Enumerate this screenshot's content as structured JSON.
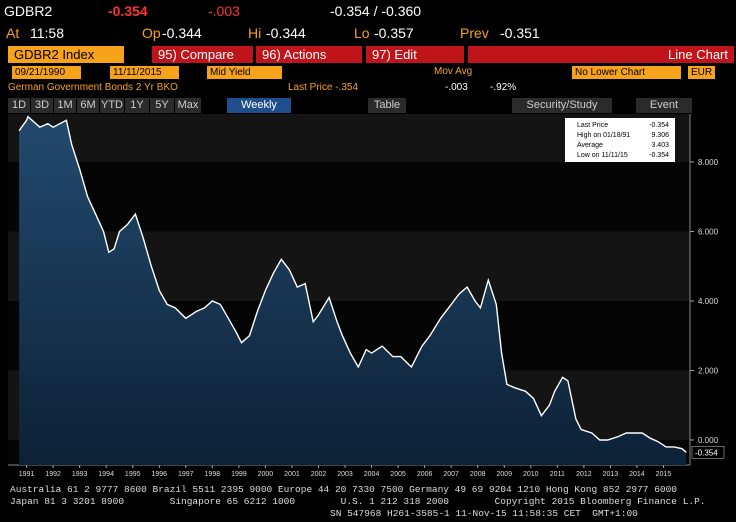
{
  "header": {
    "ticker": "GDBR2",
    "last": "-0.354",
    "change": "-.003",
    "bid_ask": "-0.354 / -0.360"
  },
  "quote": {
    "at_label": "At",
    "at": "11:58",
    "op_label": "Op",
    "op": "-0.344",
    "hi_label": "Hi",
    "hi": "-0.344",
    "lo_label": "Lo",
    "lo": "-0.357",
    "prev_label": "Prev",
    "prev": "-0.351"
  },
  "menu": {
    "security": "GDBR2 Index",
    "compare": "95) Compare",
    "actions": "96) Actions",
    "edit": "97) Edit",
    "chart_type": "Line Chart"
  },
  "settings": {
    "start": "09/21/1990",
    "end": "11/11/2015",
    "field": "Mid Yield",
    "study": "Mov Avg",
    "lower": "No Lower Chart",
    "currency": "EUR"
  },
  "info": {
    "name": "German Government Bonds 2 Yr BKO",
    "last_price": "Last Price -.354",
    "change": "-.003",
    "pct": "-.92%"
  },
  "toolbar": {
    "ranges": [
      "1D",
      "3D",
      "1M",
      "6M",
      "YTD",
      "1Y",
      "5Y",
      "Max"
    ],
    "period": "Weekly",
    "table": "Table",
    "study": "Security/Study",
    "event": "Event"
  },
  "chart_data": {
    "type": "line",
    "x": [
      1990.72,
      1991.0,
      1991.05,
      1991.5,
      1991.8,
      1992.0,
      1992.5,
      1992.7,
      1993.0,
      1993.3,
      1993.6,
      1993.9,
      1994.1,
      1994.3,
      1994.5,
      1994.8,
      1995.1,
      1995.4,
      1995.7,
      1996.0,
      1996.3,
      1996.6,
      1997.0,
      1997.4,
      1997.7,
      1998.0,
      1998.3,
      1998.6,
      1998.9,
      1999.1,
      1999.4,
      1999.7,
      2000.0,
      2000.3,
      2000.6,
      2000.9,
      2001.2,
      2001.5,
      2001.8,
      2002.0,
      2002.4,
      2002.7,
      2002.9,
      2003.2,
      2003.5,
      2003.8,
      2004.0,
      2004.4,
      2004.8,
      2005.1,
      2005.5,
      2005.9,
      2006.2,
      2006.6,
      2007.0,
      2007.3,
      2007.6,
      2007.9,
      2008.1,
      2008.4,
      2008.7,
      2008.9,
      2009.1,
      2009.4,
      2009.8,
      2010.1,
      2010.4,
      2010.7,
      2010.9,
      2011.2,
      2011.4,
      2011.7,
      2011.9,
      2012.3,
      2012.6,
      2012.9,
      2013.3,
      2013.6,
      2013.9,
      2014.2,
      2014.5,
      2014.8,
      2015.1,
      2015.4,
      2015.7,
      2015.86
    ],
    "series": [
      {
        "name": "Last Price",
        "color": "#ffffff",
        "values": [
          8.9,
          9.2,
          9.306,
          9.0,
          9.1,
          9.0,
          9.2,
          8.5,
          7.8,
          7.0,
          6.5,
          6.0,
          5.4,
          5.5,
          6.0,
          6.2,
          6.5,
          5.8,
          5.0,
          4.3,
          3.9,
          3.8,
          3.5,
          3.7,
          3.8,
          4.0,
          3.9,
          3.5,
          3.1,
          2.8,
          3.0,
          3.7,
          4.3,
          4.8,
          5.2,
          4.9,
          4.4,
          4.5,
          3.4,
          3.6,
          4.1,
          3.4,
          3.0,
          2.5,
          2.1,
          2.6,
          2.5,
          2.7,
          2.4,
          2.4,
          2.1,
          2.7,
          3.0,
          3.5,
          3.9,
          4.2,
          4.4,
          4.0,
          3.8,
          4.6,
          3.9,
          2.5,
          1.6,
          1.5,
          1.4,
          1.2,
          0.7,
          1.0,
          1.4,
          1.8,
          1.7,
          0.6,
          0.3,
          0.2,
          0.0,
          0.0,
          0.1,
          0.2,
          0.2,
          0.2,
          0.05,
          -0.05,
          -0.2,
          -0.2,
          -0.25,
          -0.354
        ]
      }
    ],
    "stats": [
      {
        "label": "High on 01/18/91",
        "value": 9.306
      },
      {
        "label": "Average",
        "value": 3.403
      },
      {
        "label": "Low on 11/11/15",
        "value": -0.354
      }
    ],
    "xlim": [
      1990.3,
      2016.0
    ],
    "ylim": [
      -0.72,
      9.38
    ],
    "xticks": [
      {
        "value": 1991,
        "label": "1991"
      },
      {
        "value": 1992,
        "label": "1992"
      },
      {
        "value": 1993,
        "label": "1993"
      },
      {
        "value": 1994,
        "label": "1994"
      },
      {
        "value": 1995,
        "label": "1995"
      },
      {
        "value": 1996,
        "label": "1996"
      },
      {
        "value": 1997,
        "label": "1997"
      },
      {
        "value": 1998,
        "label": "1998"
      },
      {
        "value": 1999,
        "label": "1999"
      },
      {
        "value": 2000,
        "label": "2000"
      },
      {
        "value": 2001,
        "label": "2001"
      },
      {
        "value": 2002,
        "label": "2002"
      },
      {
        "value": 2003,
        "label": "2003"
      },
      {
        "value": 2004,
        "label": "2004"
      },
      {
        "value": 2005,
        "label": "2005"
      },
      {
        "value": 2006,
        "label": "2006"
      },
      {
        "value": 2007,
        "label": "2007"
      },
      {
        "value": 2008,
        "label": "2008"
      },
      {
        "value": 2009,
        "label": "2009"
      },
      {
        "value": 2010,
        "label": "2010"
      },
      {
        "value": 2011,
        "label": "2011"
      },
      {
        "value": 2012,
        "label": "2012"
      },
      {
        "value": 2013,
        "label": "2013"
      },
      {
        "value": 2014,
        "label": "2014"
      },
      {
        "value": 2015,
        "label": "2015"
      }
    ],
    "yticks": [
      {
        "value": 0,
        "label": "0.000"
      },
      {
        "value": 2,
        "label": "2.000"
      },
      {
        "value": 4,
        "label": "4.000"
      },
      {
        "value": 6,
        "label": "6.000"
      },
      {
        "value": 8,
        "label": "8.000"
      }
    ]
  },
  "footer": [
    "Australia 61 2 9777 8600 Brazil 5511 2395 9000 Europe 44 20 7330 7500 Germany 49 69 9204 1210 Hong Kong 852 2977 6000",
    "Japan 81 3 3201 8900        Singapore 65 6212 1000        U.S. 1 212 318 2000        Copyright 2015 Bloomberg Finance L.P.",
    "SN 547968 H261-3585-1 11-Nov-15 11:58:35 CET  GMT+1:00"
  ]
}
